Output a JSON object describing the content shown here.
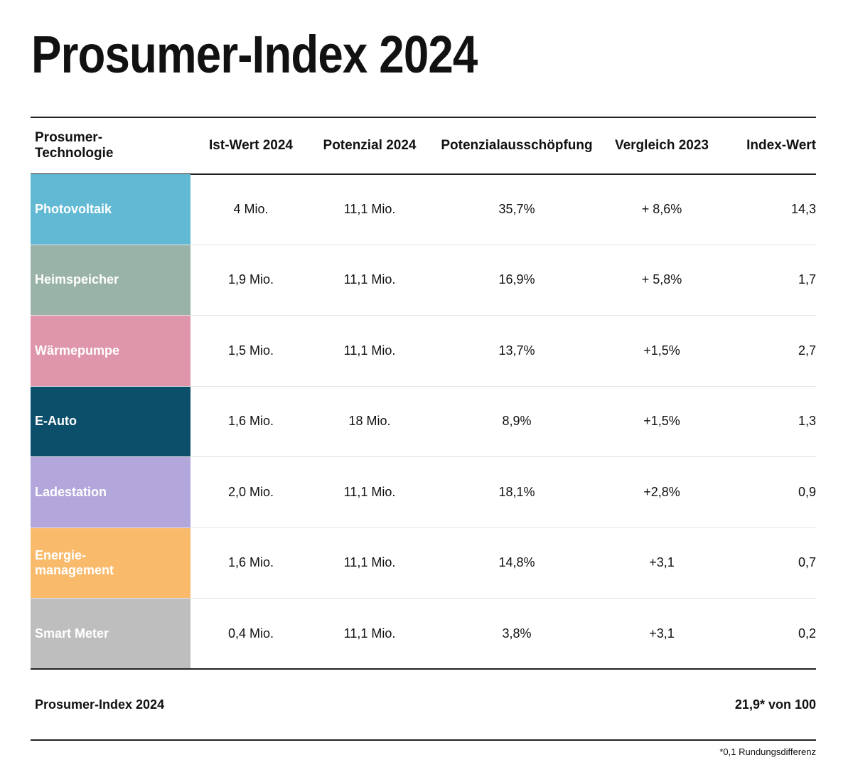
{
  "title": "Prosumer-Index 2024",
  "table": {
    "headers": {
      "technology": "Prosumer-\nTechnologie",
      "ist": "Ist-Wert 2024",
      "potenzial": "Potenzial 2024",
      "ausschoepfung": "Potenzialausschöpfung",
      "vergleich": "Vergleich 2023",
      "index": "Index-Wert"
    },
    "rows": [
      {
        "technology": "Photovoltaik",
        "color": "#62B9D4",
        "ist": "4 Mio.",
        "potenzial": "11,1 Mio.",
        "ausschoepfung": "35,7%",
        "vergleich": "+ 8,6%",
        "index": "14,3"
      },
      {
        "technology": "Heimspeicher",
        "color": "#9AB3A8",
        "ist": "1,9 Mio.",
        "potenzial": "11,1 Mio.",
        "ausschoepfung": "16,9%",
        "vergleich": "+ 5,8%",
        "index": "1,7"
      },
      {
        "technology": "Wärmepumpe",
        "color": "#E096AA",
        "ist": "1,5 Mio.",
        "potenzial": "11,1 Mio.",
        "ausschoepfung": "13,7%",
        "vergleich": "+1,5%",
        "index": "2,7"
      },
      {
        "technology": "E-Auto",
        "color": "#0C4F6B",
        "ist": "1,6 Mio.",
        "potenzial": "18 Mio.",
        "ausschoepfung": "8,9%",
        "vergleich": "+1,5%",
        "index": "1,3"
      },
      {
        "technology": "Ladestation",
        "color": "#B3A6DB",
        "ist": "2,0 Mio.",
        "potenzial": "11,1 Mio.",
        "ausschoepfung": "18,1%",
        "vergleich": "+2,8%",
        "index": "0,9"
      },
      {
        "technology": "Energie-\nmanagement",
        "color": "#FABA6B",
        "ist": "1,6 Mio.",
        "potenzial": "11,1 Mio.",
        "ausschoepfung": "14,8%",
        "vergleich": "+3,1",
        "index": "0,7"
      },
      {
        "technology": "Smart Meter",
        "color": "#BEBEBE",
        "ist": "0,4 Mio.",
        "potenzial": "11,1 Mio.",
        "ausschoepfung": "3,8%",
        "vergleich": "+3,1",
        "index": "0,2"
      }
    ],
    "total": {
      "label": "Prosumer-Index 2024",
      "value": "21,9* von 100"
    }
  },
  "footnote": "*0,1 Rundungsdifferenz"
}
